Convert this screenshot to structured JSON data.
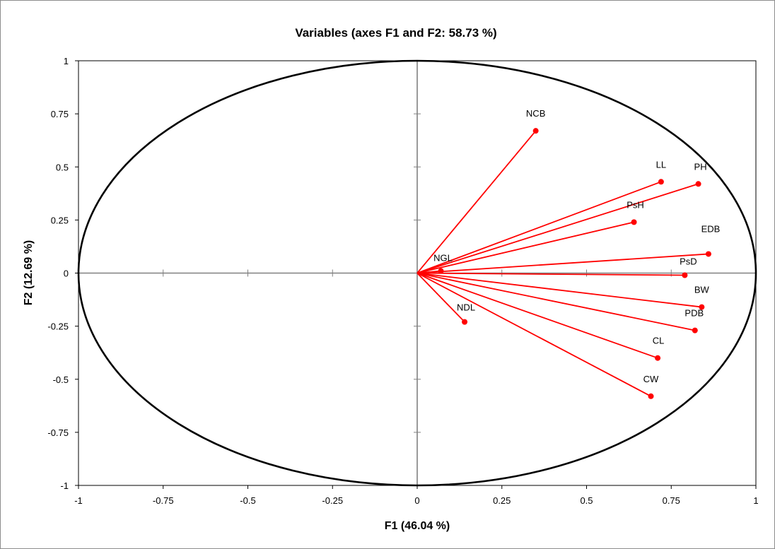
{
  "chart_data": {
    "type": "scatter",
    "subtype": "pca-correlation-circle",
    "title": "Variables (axes F1 and F2: 58.73 %)",
    "xlabel": "F1 (46.04 %)",
    "ylabel": "F2 (12.69 %)",
    "xlim": [
      -1,
      1
    ],
    "ylim": [
      -1,
      1
    ],
    "x_ticks": [
      -1,
      -0.75,
      -0.5,
      -0.25,
      0,
      0.25,
      0.5,
      0.75,
      1
    ],
    "y_ticks": [
      -1,
      -0.75,
      -0.5,
      -0.25,
      0,
      0.25,
      0.5,
      0.75,
      1
    ],
    "x_tick_labels": [
      "-1",
      "-0.75",
      "-0.5",
      "-0.25",
      "0",
      "0.25",
      "0.5",
      "0.75",
      "1"
    ],
    "y_tick_labels": [
      "-1",
      "-0.75",
      "-0.5",
      "-0.25",
      "0",
      "0.25",
      "0.5",
      "0.75",
      "1"
    ],
    "unit_circle": true,
    "vector_color": "#ff0000",
    "points": [
      {
        "label": "NCB",
        "x": 0.35,
        "y": 0.67
      },
      {
        "label": "LL",
        "x": 0.72,
        "y": 0.43
      },
      {
        "label": "PH",
        "x": 0.83,
        "y": 0.42
      },
      {
        "label": "PsH",
        "x": 0.64,
        "y": 0.24
      },
      {
        "label": "EDB",
        "x": 0.86,
        "y": 0.09
      },
      {
        "label": "NGL",
        "x": 0.07,
        "y": 0.01
      },
      {
        "label": "PsD",
        "x": 0.79,
        "y": -0.01
      },
      {
        "label": "BW",
        "x": 0.84,
        "y": -0.16
      },
      {
        "label": "NDL",
        "x": 0.14,
        "y": -0.23
      },
      {
        "label": "PDB",
        "x": 0.82,
        "y": -0.27
      },
      {
        "label": "CL",
        "x": 0.71,
        "y": -0.4
      },
      {
        "label": "CW",
        "x": 0.69,
        "y": -0.58
      }
    ]
  }
}
